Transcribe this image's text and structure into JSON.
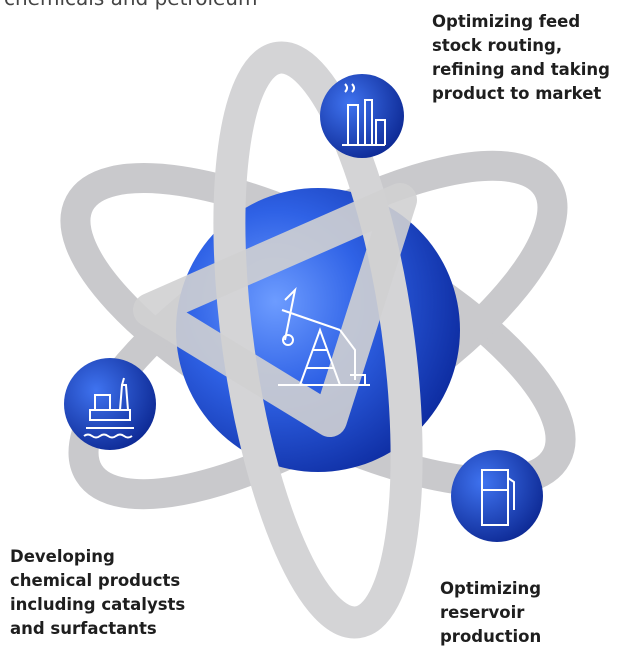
{
  "header": {
    "text": "chemicals and petroleum"
  },
  "nodes": [
    {
      "label_lines": [
        "Optimizing feed",
        "stock routing,",
        "refining and taking",
        "product to market"
      ]
    },
    {
      "label_lines": [
        "Developing",
        "chemical products",
        "including catalysts",
        "and surfactants"
      ]
    },
    {
      "label_lines": [
        "Optimizing",
        "reservoir",
        "production"
      ]
    }
  ]
}
